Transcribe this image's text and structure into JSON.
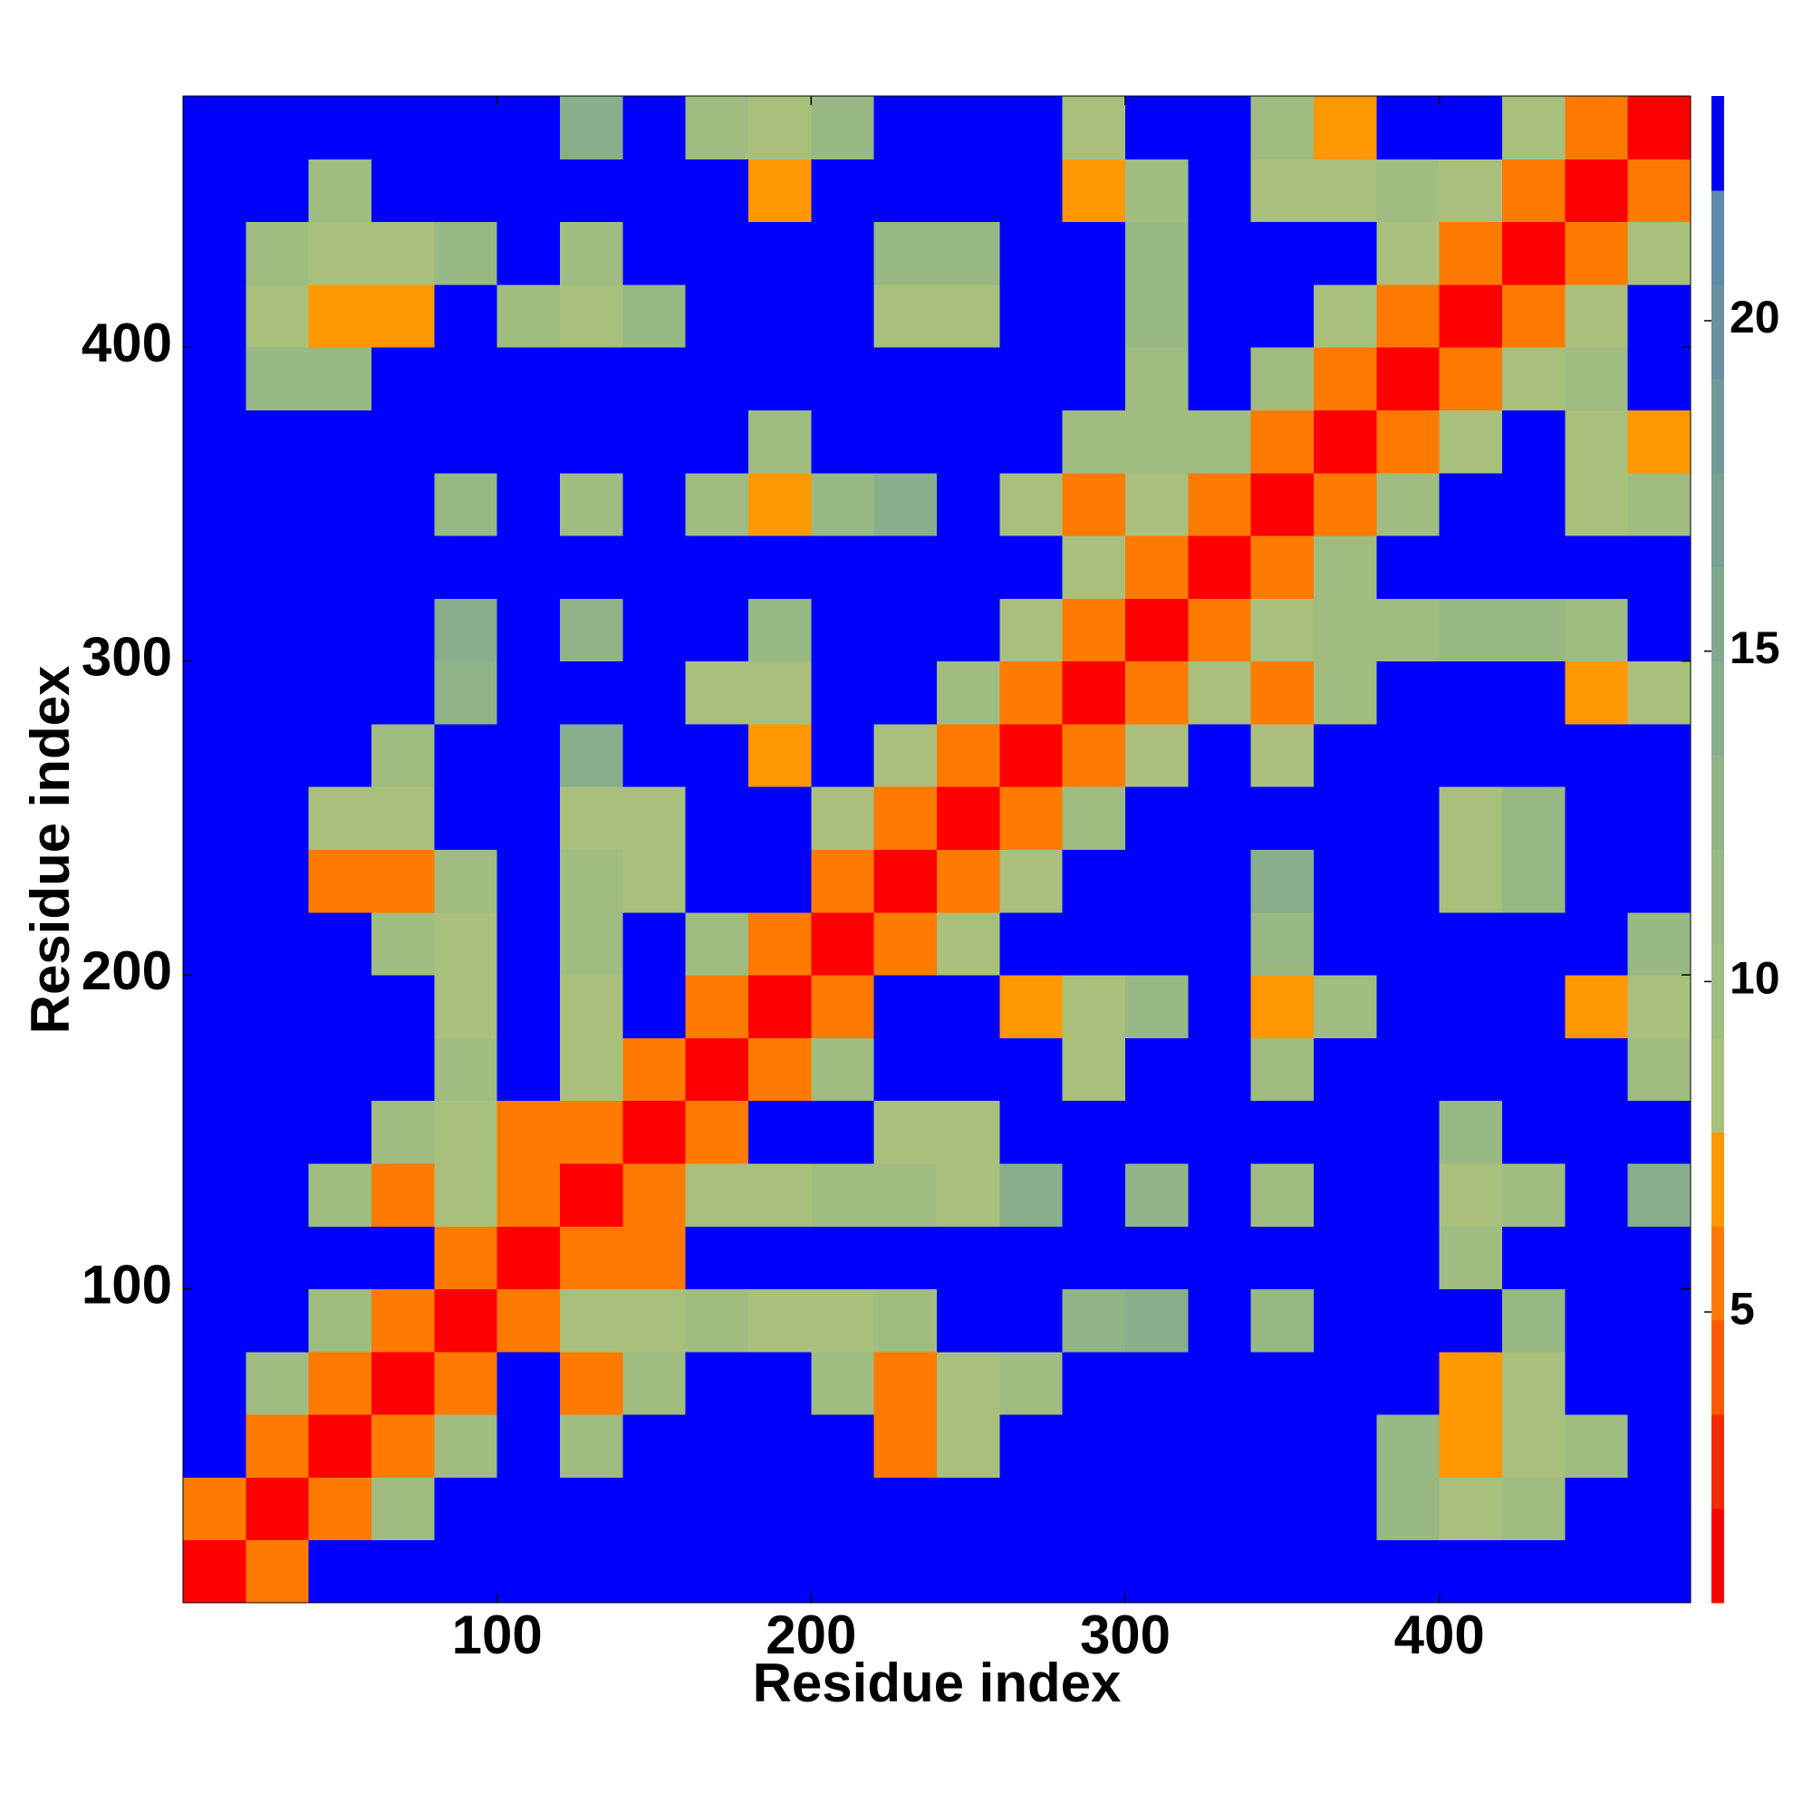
{
  "chart_data": {
    "type": "heatmap",
    "x_label": "Residue index",
    "y_label": "Residue index",
    "xlim": [
      0,
      480
    ],
    "ylim": [
      0,
      480
    ],
    "xticks": [
      100,
      200,
      300,
      400
    ],
    "yticks": [
      100,
      200,
      300,
      400
    ],
    "xbins": [
      0,
      20,
      40,
      60,
      80,
      100,
      120,
      140,
      160,
      180,
      200,
      220,
      240,
      260,
      280,
      300,
      320,
      340,
      360,
      380,
      400,
      420,
      440,
      460,
      480
    ],
    "ybins": [
      0,
      20,
      40,
      60,
      80,
      100,
      120,
      140,
      160,
      180,
      200,
      220,
      240,
      260,
      280,
      300,
      320,
      340,
      360,
      380,
      400,
      420,
      440,
      460,
      480
    ],
    "levels": [
      0.6,
      2.025,
      3.45,
      4.875,
      6.3,
      7.725,
      9.15,
      10.575,
      12,
      13.425,
      14.85,
      16.275,
      17.7,
      19.125,
      20.55,
      21.975,
      23.4
    ],
    "colors": [
      "#ff0000",
      "#f42a00",
      "#ff5a00",
      "#ff7a00",
      "#ff9800",
      "#a8c07c",
      "#a0bc80",
      "#98b884",
      "#90b488",
      "#88ae8c",
      "#80a890",
      "#78a094",
      "#709898",
      "#6890a0",
      "#6088a8",
      "#0000ff"
    ],
    "colorbar_ticks": [
      5,
      10,
      15,
      20
    ],
    "values": [
      [
        1,
        6,
        23,
        23,
        23,
        23,
        23,
        23,
        23,
        23,
        23,
        23,
        23,
        23,
        23,
        23,
        23,
        23,
        23,
        23,
        23,
        23,
        23,
        23
      ],
      [
        6,
        1,
        6,
        10,
        23,
        23,
        23,
        23,
        23,
        23,
        23,
        23,
        23,
        23,
        23,
        23,
        23,
        23,
        23,
        12,
        9,
        10,
        23,
        23
      ],
      [
        23,
        6,
        1,
        5,
        10,
        23,
        10,
        23,
        23,
        23,
        23,
        6,
        8,
        23,
        23,
        23,
        23,
        23,
        23,
        11,
        7,
        9,
        10,
        23
      ],
      [
        23,
        10,
        5,
        1,
        6,
        23,
        6,
        10,
        23,
        23,
        10,
        6,
        8,
        10,
        23,
        23,
        23,
        23,
        23,
        23,
        7,
        8,
        23,
        23
      ],
      [
        23,
        23,
        10,
        6,
        1,
        6,
        9,
        9,
        10,
        8,
        8,
        10,
        23,
        23,
        13,
        14,
        23,
        11,
        23,
        23,
        23,
        12,
        23,
        23
      ],
      [
        23,
        23,
        23,
        23,
        6,
        1,
        6,
        6,
        23,
        23,
        23,
        23,
        23,
        23,
        23,
        23,
        23,
        23,
        23,
        23,
        10,
        23,
        23,
        23
      ],
      [
        23,
        23,
        10,
        6,
        9,
        6,
        1,
        6,
        8,
        8,
        10,
        10,
        9,
        14,
        23,
        13,
        23,
        10,
        23,
        23,
        8,
        10,
        23,
        14
      ],
      [
        23,
        23,
        23,
        10,
        9,
        6,
        6,
        1,
        6,
        23,
        23,
        9,
        8,
        23,
        23,
        23,
        23,
        23,
        23,
        23,
        12,
        23,
        23,
        23
      ],
      [
        23,
        23,
        23,
        23,
        10,
        23,
        8,
        6,
        1,
        6,
        10,
        23,
        23,
        23,
        9,
        23,
        23,
        10,
        23,
        23,
        23,
        23,
        23,
        10
      ],
      [
        23,
        23,
        23,
        23,
        8,
        23,
        8,
        23,
        6,
        1,
        6,
        23,
        23,
        7,
        8,
        11,
        23,
        7,
        10,
        23,
        23,
        23,
        7,
        8
      ],
      [
        23,
        23,
        23,
        10,
        8,
        23,
        10,
        23,
        10,
        6,
        1,
        6,
        9,
        23,
        23,
        23,
        23,
        11,
        23,
        23,
        23,
        23,
        23,
        11
      ],
      [
        23,
        23,
        6,
        6,
        10,
        23,
        10,
        9,
        23,
        23,
        6,
        1,
        6,
        8,
        23,
        23,
        23,
        14,
        23,
        23,
        8,
        11,
        23,
        23
      ],
      [
        23,
        23,
        8,
        8,
        23,
        23,
        9,
        8,
        23,
        23,
        9,
        6,
        1,
        6,
        10,
        23,
        23,
        23,
        23,
        23,
        9,
        11,
        23,
        23
      ],
      [
        23,
        23,
        23,
        10,
        23,
        23,
        14,
        23,
        23,
        7,
        23,
        8,
        6,
        1,
        6,
        8,
        23,
        9,
        23,
        23,
        23,
        23,
        23,
        23
      ],
      [
        23,
        23,
        23,
        23,
        13,
        23,
        23,
        23,
        9,
        8,
        23,
        23,
        10,
        6,
        1,
        6,
        9,
        6,
        10,
        23,
        23,
        23,
        7,
        8
      ],
      [
        23,
        23,
        23,
        23,
        14,
        23,
        13,
        23,
        23,
        11,
        23,
        23,
        23,
        8,
        6,
        1,
        6,
        8,
        10,
        10,
        12,
        11,
        10,
        23
      ],
      [
        23,
        23,
        23,
        23,
        23,
        23,
        23,
        23,
        23,
        23,
        23,
        23,
        23,
        23,
        9,
        6,
        1,
        6,
        10,
        23,
        23,
        23,
        23,
        23
      ],
      [
        23,
        23,
        23,
        23,
        11,
        23,
        10,
        23,
        10,
        7,
        11,
        14,
        23,
        9,
        6,
        8,
        6,
        1,
        6,
        10,
        23,
        23,
        9,
        10
      ],
      [
        23,
        23,
        23,
        23,
        23,
        23,
        23,
        23,
        23,
        10,
        23,
        23,
        23,
        23,
        10,
        10,
        10,
        6,
        1,
        6,
        9,
        23,
        8,
        7
      ],
      [
        23,
        12,
        11,
        23,
        23,
        23,
        23,
        23,
        23,
        23,
        23,
        23,
        23,
        23,
        23,
        10,
        23,
        10,
        6,
        1,
        6,
        9,
        10,
        23
      ],
      [
        23,
        9,
        7,
        7,
        23,
        10,
        8,
        12,
        23,
        23,
        23,
        8,
        9,
        23,
        23,
        12,
        23,
        23,
        9,
        6,
        1,
        6,
        8,
        23
      ],
      [
        23,
        10,
        9,
        8,
        12,
        23,
        10,
        23,
        23,
        23,
        23,
        11,
        11,
        23,
        23,
        11,
        23,
        23,
        23,
        9,
        6,
        1,
        6,
        8
      ],
      [
        23,
        23,
        10,
        23,
        23,
        23,
        23,
        23,
        23,
        7,
        23,
        23,
        23,
        23,
        7,
        10,
        23,
        9,
        8,
        10,
        8,
        6,
        1,
        6
      ],
      [
        23,
        23,
        23,
        23,
        23,
        23,
        14,
        23,
        10,
        8,
        11,
        23,
        23,
        23,
        8,
        23,
        23,
        10,
        7,
        23,
        23,
        8,
        6,
        1
      ]
    ]
  }
}
